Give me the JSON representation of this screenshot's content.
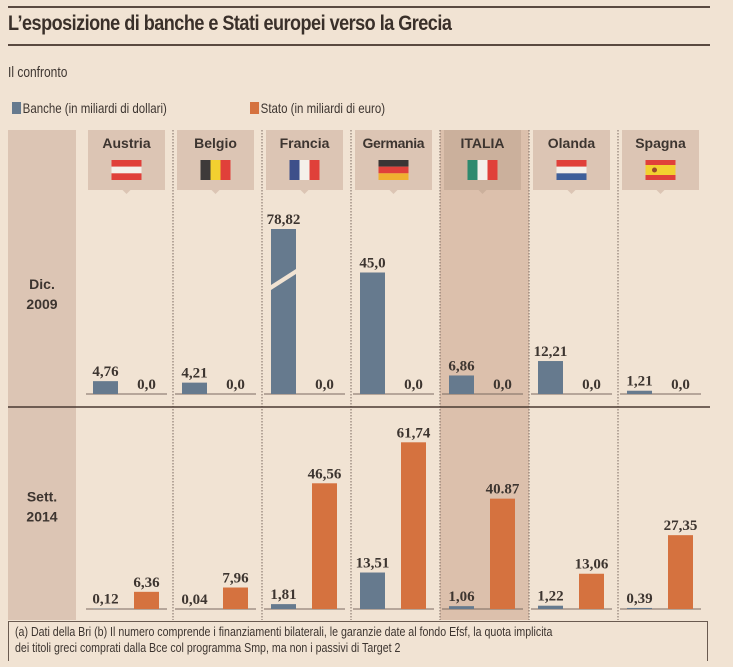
{
  "title": "L’esposizione di banche e Stati europei verso la Grecia",
  "subtitle": "Il confronto",
  "legend": [
    {
      "label": "Banche (in miliardi di dollari)",
      "color": "#667a8e"
    },
    {
      "label": "Stato (in miliardi di euro)",
      "color": "#d5723f"
    }
  ],
  "footnote": {
    "line1": "(a) Dati della Bri (b) Il numero comprende i finanziamenti bilaterali, le garanzie date al fondo Efsf, la quota implicita",
    "line2": "dei titoli greci comprati dalla Bce col programma Smp, ma non i passivi di Target 2"
  },
  "chart_data": {
    "type": "bar",
    "title": "L’esposizione di banche e Stati europei verso la Grecia",
    "subtitle": "Il confronto",
    "categories": [
      "Austria",
      "Belgio",
      "Francia",
      "Germania",
      "ITALIA",
      "Olanda",
      "Spagna"
    ],
    "highlight": "ITALIA",
    "flags": [
      "austria-flag",
      "belgium-flag",
      "france-flag",
      "germany-flag",
      "italy-flag",
      "netherlands-flag",
      "spain-flag"
    ],
    "panels": [
      {
        "label": [
          "Dic.",
          "2009"
        ],
        "series": [
          {
            "name": "Banche (in miliardi di dollari)",
            "values": [
              4.76,
              4.21,
              78.82,
              45.0,
              6.86,
              12.21,
              1.21
            ],
            "labels": [
              "4,76",
              "4,21",
              "78,82",
              "45,0",
              "6,86",
              "12,21",
              "1,21"
            ]
          },
          {
            "name": "Stato (in miliardi di euro)",
            "values": [
              0.0,
              0.0,
              0.0,
              0.0,
              0.0,
              0.0,
              0.0
            ],
            "labels": [
              "0,0",
              "0,0",
              "0,0",
              "0,0",
              "0,0",
              "0,0",
              "0,0"
            ]
          }
        ],
        "broken_bar": {
          "category": "Francia",
          "series": "Banche (in miliardi di dollari)"
        }
      },
      {
        "label": [
          "Sett.",
          "2014"
        ],
        "series": [
          {
            "name": "Banche (in miliardi di dollari)",
            "values": [
              0.12,
              0.04,
              1.81,
              13.51,
              1.06,
              1.22,
              0.39
            ],
            "labels": [
              "0,12",
              "0,04",
              "1,81",
              "13,51",
              "1,06",
              "1,22",
              "0,39"
            ]
          },
          {
            "name": "Stato (in miliardi di euro)",
            "values": [
              6.36,
              7.96,
              46.56,
              61.74,
              40.87,
              13.06,
              27.35
            ],
            "labels": [
              "6,36",
              "7,96",
              "46,56",
              "61,74",
              "40.87",
              "13,06",
              "27,35"
            ]
          }
        ]
      }
    ],
    "colors": {
      "banche": "#667a8e",
      "stato": "#d5723f"
    },
    "xlabel": "",
    "ylabel": "",
    "grid": false,
    "legend_position": "top-left"
  }
}
